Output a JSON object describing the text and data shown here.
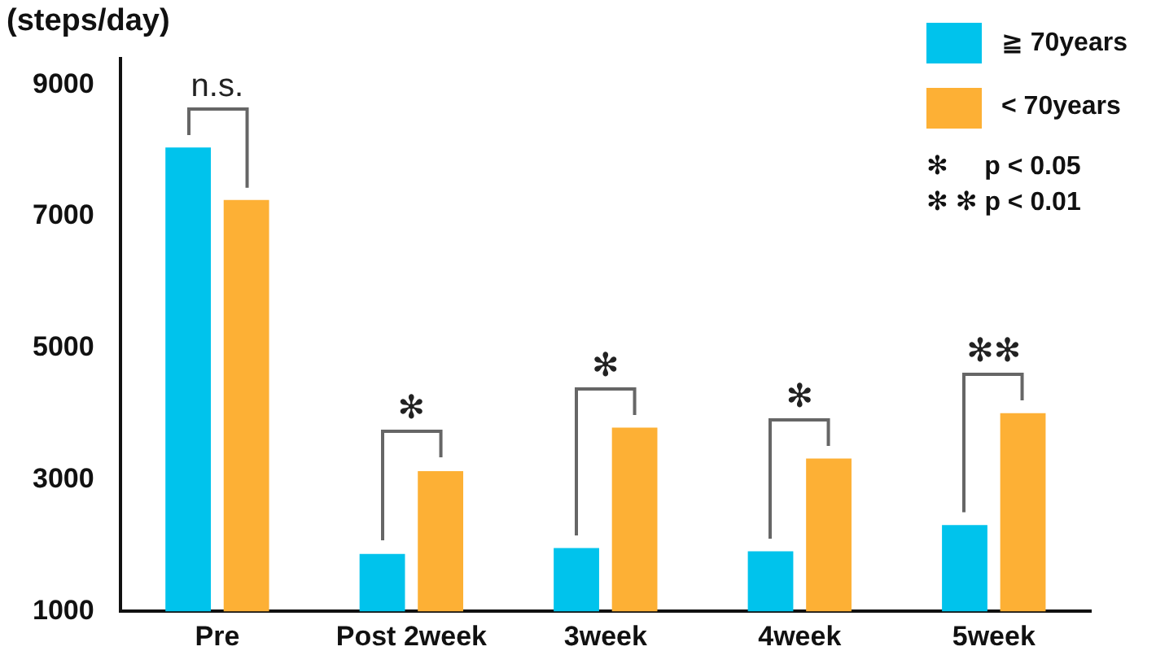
{
  "chart_data": {
    "type": "bar",
    "ylabel": "(steps/day)",
    "categories": [
      "Pre",
      "Post 2week",
      "3week",
      "4week",
      "5week"
    ],
    "series": [
      {
        "name": "≧ 70years",
        "color": "#00c3ec",
        "values": [
          8050,
          1870,
          1960,
          1910,
          2310
        ]
      },
      {
        "name": "< 70years",
        "color": "#fdb035",
        "values": [
          7250,
          3130,
          3790,
          3320,
          4010
        ]
      }
    ],
    "ylim": [
      1000,
      9400
    ],
    "yticks": [
      1000,
      3000,
      5000,
      7000,
      9000
    ],
    "grid": false,
    "legend": "top right",
    "annotations": [
      "n.s.",
      "✻",
      "✻",
      "✻",
      "✻✻",
      "✻     p < 0.05",
      "✻ ✻ p < 0.01"
    ]
  }
}
